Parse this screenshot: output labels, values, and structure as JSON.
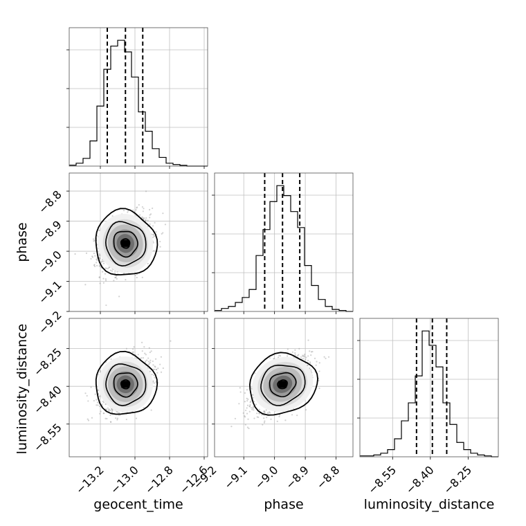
{
  "chart_data": {
    "type": "corner",
    "parameters": [
      "geocent_time",
      "phase",
      "luminosity_distance"
    ],
    "grid": true,
    "quantile_lines_style": "black dashed",
    "contour_levels_style": "black solid contours over grayscale density, scattered points outside",
    "panels": [
      {
        "name": "geocent_time-histogram",
        "type": "histogram",
        "x_param": "geocent_time",
        "xlim": [
          -13.38,
          -12.58
        ],
        "x_ticks": [
          -13.2,
          -13.0,
          -12.8,
          -12.6
        ],
        "bin_edges": [
          -13.38,
          -13.34,
          -13.3,
          -13.26,
          -13.22,
          -13.18,
          -13.14,
          -13.1,
          -13.06,
          -13.02,
          -12.98,
          -12.94,
          -12.9,
          -12.86,
          -12.82,
          -12.78,
          -12.74,
          -12.7,
          -12.66,
          -12.62,
          -12.58
        ],
        "counts": [
          0.5,
          1.5,
          4,
          13,
          31,
          50,
          62,
          65,
          59,
          46,
          28,
          18,
          9,
          4.5,
          1.5,
          0.8,
          0.4,
          0,
          0,
          0
        ],
        "quantiles": [
          -13.16,
          -13.055,
          -12.955
        ]
      },
      {
        "name": "phase-histogram",
        "type": "histogram",
        "x_param": "phase",
        "xlim": [
          -9.195,
          -8.745
        ],
        "x_ticks": [
          -9.2,
          -9.1,
          -9.0,
          -8.9,
          -8.8
        ],
        "bin_edges": [
          -9.195,
          -9.1725,
          -9.15,
          -9.1275,
          -9.105,
          -9.0825,
          -9.06,
          -9.0375,
          -9.015,
          -8.9925,
          -8.97,
          -8.9475,
          -8.925,
          -8.9025,
          -8.88,
          -8.8575,
          -8.835,
          -8.8125,
          -8.79,
          -8.7675,
          -8.745
        ],
        "counts": [
          0.5,
          1.5,
          2.5,
          4.5,
          7,
          11,
          28,
          41,
          55,
          63,
          58,
          50,
          42,
          23,
          13,
          6,
          2.5,
          1,
          0.5,
          0
        ],
        "quantiles": [
          -9.032,
          -8.974,
          -8.918
        ]
      },
      {
        "name": "luminosity_distance-histogram",
        "type": "histogram",
        "x_param": "luminosity_distance",
        "xlim": [
          -8.68,
          -8.13
        ],
        "x_ticks": [
          -8.55,
          -8.4,
          -8.25
        ],
        "bin_edges": [
          -8.68,
          -8.6525,
          -8.625,
          -8.5975,
          -8.57,
          -8.5425,
          -8.515,
          -8.4875,
          -8.46,
          -8.4325,
          -8.405,
          -8.3775,
          -8.35,
          -8.3225,
          -8.295,
          -8.2675,
          -8.24,
          -8.2125,
          -8.185,
          -8.1575,
          -8.13
        ],
        "counts": [
          0.5,
          0.5,
          1,
          2,
          4,
          10,
          20,
          30,
          45,
          70,
          62,
          50,
          30,
          18,
          8,
          4,
          2,
          1,
          0.5,
          0
        ],
        "quantiles": [
          -8.455,
          -8.392,
          -8.335
        ]
      },
      {
        "name": "phase-vs-geocent_time",
        "type": "2d-density",
        "x_param": "geocent_time",
        "y_param": "phase",
        "xlim": [
          -13.38,
          -12.58
        ],
        "ylim": [
          -9.2,
          -8.74
        ],
        "center": [
          -13.055,
          -8.974
        ],
        "sigma": [
          0.072,
          0.046
        ],
        "correlation": 0.3,
        "y_ticks": [
          -8.8,
          -8.9,
          -9.0,
          -9.1,
          -9.2
        ]
      },
      {
        "name": "luminosity_distance-vs-geocent_time",
        "type": "2d-density",
        "x_param": "geocent_time",
        "y_param": "luminosity_distance",
        "xlim": [
          -13.38,
          -12.58
        ],
        "ylim": [
          -8.68,
          -8.13
        ],
        "center": [
          -13.055,
          -8.392
        ],
        "sigma": [
          0.072,
          0.052
        ],
        "correlation": 0.35,
        "y_ticks": [
          -8.25,
          -8.4,
          -8.55
        ]
      },
      {
        "name": "luminosity_distance-vs-phase",
        "type": "2d-density",
        "x_param": "phase",
        "y_param": "luminosity_distance",
        "xlim": [
          -9.195,
          -8.745
        ],
        "ylim": [
          -8.68,
          -8.13
        ],
        "center": [
          -8.974,
          -8.392
        ],
        "sigma": [
          0.046,
          0.052
        ],
        "correlation": 0.55
      }
    ],
    "axis_labels": {
      "bottom": [
        "geocent_time",
        "phase",
        "luminosity_distance"
      ],
      "left": [
        "phase",
        "luminosity_distance"
      ]
    },
    "tick_labels": {
      "geocent_time": [
        "−13.2",
        "−13.0",
        "−12.8",
        "−12.6"
      ],
      "phase": [
        "−9.2",
        "−9.1",
        "−9.0",
        "−8.9",
        "−8.8"
      ],
      "luminosity_distance": [
        "−8.55",
        "−8.40",
        "−8.25"
      ]
    }
  }
}
